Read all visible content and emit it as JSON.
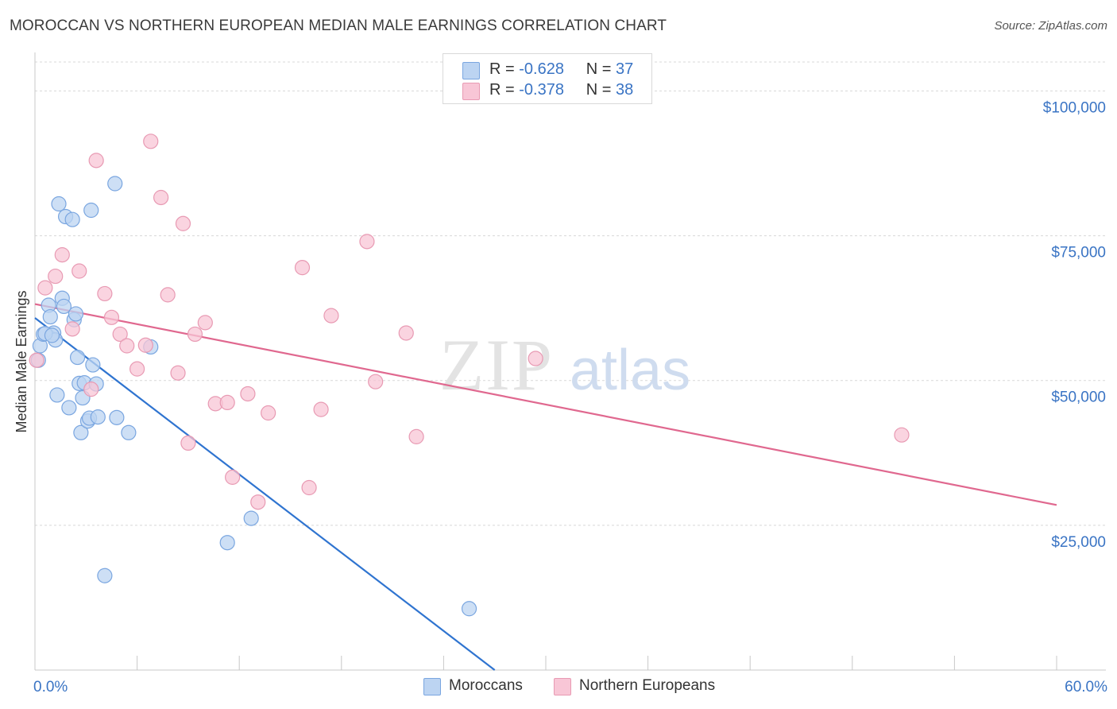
{
  "title": "MOROCCAN VS NORTHERN EUROPEAN MEDIAN MALE EARNINGS CORRELATION CHART",
  "source": "Source: ZipAtlas.com",
  "legend_top": [
    {
      "r_label": "R =",
      "r_value": "-0.628",
      "n_label": "N =",
      "n_value": "37"
    },
    {
      "r_label": "R =",
      "r_value": "-0.378",
      "n_label": "N =",
      "n_value": "38"
    }
  ],
  "legend_bottom": [
    "Moroccans",
    "Northern Europeans"
  ],
  "colors": {
    "moroccans_fill": "#bcd4f2",
    "moroccans_stroke": "#7aa6e0",
    "moroccans_line": "#2f74d0",
    "northern_fill": "#f8c6d6",
    "northern_stroke": "#e89ab3",
    "northern_line": "#e0688f",
    "axis_text": "#3a74c4",
    "grid": "#d8d8d8"
  },
  "watermark": {
    "zip": "ZIP",
    "atlas": "atlas"
  },
  "chart_data": {
    "type": "scatter",
    "title": "MOROCCAN VS NORTHERN EUROPEAN MEDIAN MALE EARNINGS CORRELATION CHART",
    "xlabel": "",
    "ylabel": "Median Male Earnings",
    "xlim": [
      0,
      60
    ],
    "ylim": [
      0,
      105000
    ],
    "x_ticks": [
      "0.0%",
      "60.0%"
    ],
    "y_ticks": [
      {
        "value": 25000,
        "label": "$25,000"
      },
      {
        "value": 50000,
        "label": "$50,000"
      },
      {
        "value": 75000,
        "label": "$75,000"
      },
      {
        "value": 100000,
        "label": "$100,000"
      }
    ],
    "grid": true,
    "legend_position": "top-center",
    "series": [
      {
        "name": "Moroccans",
        "r": -0.628,
        "n": 37,
        "trend": [
          [
            0,
            60800
          ],
          [
            27,
            0
          ]
        ],
        "points": [
          [
            0.2,
            53500
          ],
          [
            0.3,
            56000
          ],
          [
            0.5,
            58000
          ],
          [
            0.8,
            63000
          ],
          [
            0.9,
            61000
          ],
          [
            1.1,
            58200
          ],
          [
            1.2,
            57000
          ],
          [
            1.3,
            47500
          ],
          [
            1.4,
            80500
          ],
          [
            1.6,
            64200
          ],
          [
            1.7,
            62800
          ],
          [
            1.8,
            78300
          ],
          [
            2.0,
            45300
          ],
          [
            2.2,
            77800
          ],
          [
            2.3,
            60500
          ],
          [
            2.5,
            54000
          ],
          [
            2.6,
            49500
          ],
          [
            2.7,
            41000
          ],
          [
            2.8,
            47000
          ],
          [
            2.9,
            49600
          ],
          [
            3.1,
            43000
          ],
          [
            3.2,
            43500
          ],
          [
            3.3,
            79400
          ],
          [
            3.4,
            52700
          ],
          [
            3.6,
            49400
          ],
          [
            3.7,
            43700
          ],
          [
            4.1,
            16300
          ],
          [
            4.7,
            84000
          ],
          [
            4.8,
            43600
          ],
          [
            5.5,
            41000
          ],
          [
            6.8,
            55800
          ],
          [
            11.3,
            22000
          ],
          [
            12.7,
            26200
          ],
          [
            25.5,
            10600
          ],
          [
            0.6,
            58100
          ],
          [
            2.4,
            61500
          ],
          [
            1.0,
            57800
          ]
        ]
      },
      {
        "name": "Northern Europeans",
        "r": -0.378,
        "n": 38,
        "trend": [
          [
            0,
            63200
          ],
          [
            60,
            28500
          ]
        ],
        "points": [
          [
            0.1,
            53500
          ],
          [
            0.6,
            66000
          ],
          [
            1.2,
            68000
          ],
          [
            1.6,
            71700
          ],
          [
            2.2,
            58900
          ],
          [
            2.6,
            68900
          ],
          [
            3.3,
            48500
          ],
          [
            3.6,
            88000
          ],
          [
            4.1,
            65000
          ],
          [
            4.5,
            60900
          ],
          [
            5.0,
            58000
          ],
          [
            5.4,
            56000
          ],
          [
            6.0,
            52000
          ],
          [
            6.5,
            56100
          ],
          [
            6.8,
            91300
          ],
          [
            7.4,
            81600
          ],
          [
            7.8,
            64800
          ],
          [
            8.4,
            51300
          ],
          [
            8.7,
            77100
          ],
          [
            9.0,
            39200
          ],
          [
            9.4,
            58000
          ],
          [
            10.0,
            60000
          ],
          [
            10.6,
            46000
          ],
          [
            11.3,
            46200
          ],
          [
            11.6,
            33300
          ],
          [
            12.5,
            47700
          ],
          [
            13.1,
            29000
          ],
          [
            13.7,
            44400
          ],
          [
            15.7,
            69500
          ],
          [
            16.1,
            31500
          ],
          [
            16.8,
            45000
          ],
          [
            17.4,
            61200
          ],
          [
            19.5,
            74000
          ],
          [
            20.0,
            49800
          ],
          [
            21.8,
            58200
          ],
          [
            22.4,
            40300
          ],
          [
            29.4,
            53800
          ],
          [
            50.9,
            40600
          ]
        ]
      }
    ]
  }
}
